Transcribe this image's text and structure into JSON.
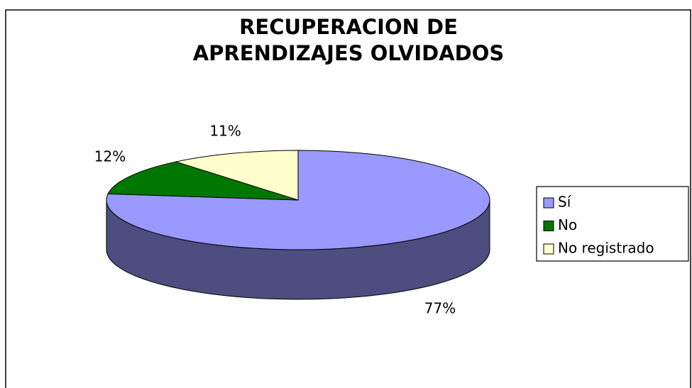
{
  "chart_data": {
    "type": "pie3d",
    "title": [
      "RECUPERACION DE",
      "APRENDIZAJES OLVIDADOS"
    ],
    "categories": [
      "Sí",
      "No",
      "No registrado"
    ],
    "values": [
      77,
      12,
      11
    ],
    "value_labels": [
      "77%",
      "12%",
      "11%"
    ],
    "colors": [
      "#9999ff",
      "#007700",
      "#ffffcc"
    ],
    "legend": "right"
  }
}
